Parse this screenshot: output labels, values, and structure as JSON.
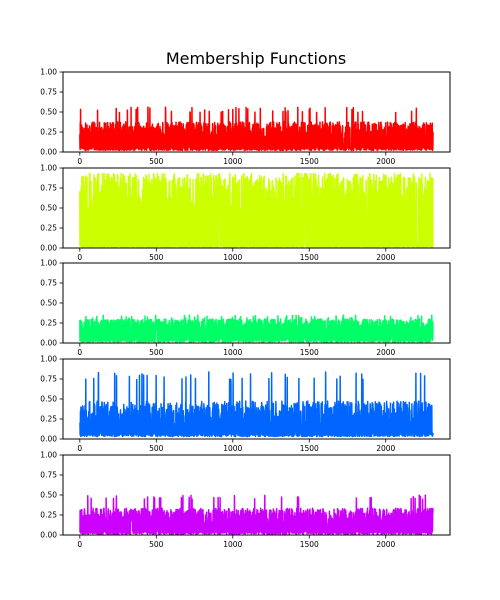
{
  "chart_data": {
    "type": "line",
    "title": "Membership Functions",
    "xlabel": "",
    "ylabel": "",
    "xlim": [
      -110,
      2420
    ],
    "ylim": [
      0,
      1
    ],
    "xticks": [
      0,
      500,
      1000,
      1500,
      2000
    ],
    "yticks": [
      "0.00",
      "0.25",
      "0.50",
      "0.75",
      "1.00"
    ],
    "n_points": 2310,
    "grid": false,
    "legend": "none",
    "series": [
      {
        "color": "#ff0000",
        "baseline": 0.02,
        "mean": 0.22,
        "spread": 0.14,
        "peak": 0.56
      },
      {
        "color": "#ccff00",
        "baseline": 0.0,
        "mean": 0.55,
        "spread": 0.35,
        "peak": 0.93
      },
      {
        "color": "#00ff66",
        "baseline": 0.01,
        "mean": 0.2,
        "spread": 0.09,
        "peak": 0.35
      },
      {
        "color": "#0066ff",
        "baseline": 0.03,
        "mean": 0.25,
        "spread": 0.2,
        "peak": 0.84
      },
      {
        "color": "#cc00ff",
        "baseline": 0.01,
        "mean": 0.2,
        "spread": 0.12,
        "peak": 0.5
      }
    ]
  }
}
